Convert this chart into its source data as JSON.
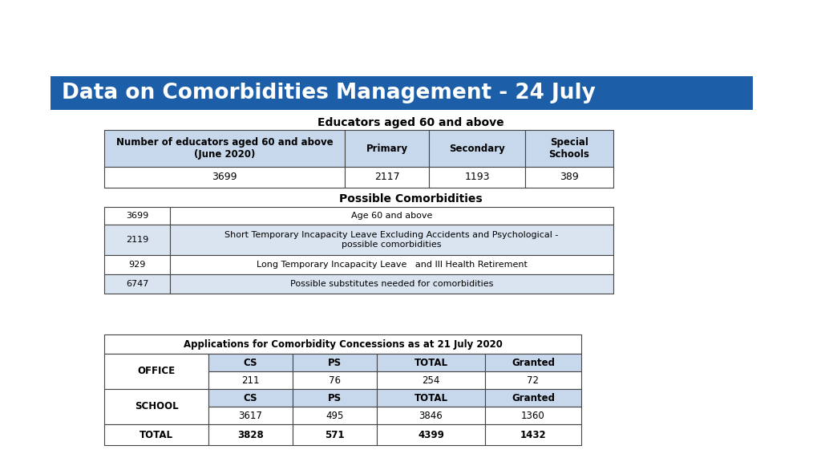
{
  "title": "Data on Comorbidities Management - 24 July",
  "title_bg": "#1C5EA8",
  "title_color": "#FFFFFF",
  "bg_color": "#FFFFFF",
  "table1_title": "Educators aged 60 and above",
  "table1_headers": [
    "Number of educators aged 60 and above\n(June 2020)",
    "Primary",
    "Secondary",
    "Special\nSchools"
  ],
  "table1_data": [
    "3699",
    "2117",
    "1193",
    "389"
  ],
  "table1_header_bg": "#C8D8EC",
  "table2_title": "Possible Comorbidities",
  "table2_rows": [
    [
      "3699",
      "Age 60 and above"
    ],
    [
      "2119",
      "Short Temporary Incapacity Leave Excluding Accidents and Psychological -\npossible comorbidities"
    ],
    [
      "929",
      "Long Temporary Incapacity Leave   and Ill Health Retirement"
    ],
    [
      "6747",
      "Possible substitutes needed for comorbidities"
    ]
  ],
  "table3_title": "Applications for Comorbidity Concessions as at 21 July 2020",
  "table3_header_bg": "#C8D8EC",
  "border_color": "#444444",
  "light_bg": "#DAE4F0"
}
